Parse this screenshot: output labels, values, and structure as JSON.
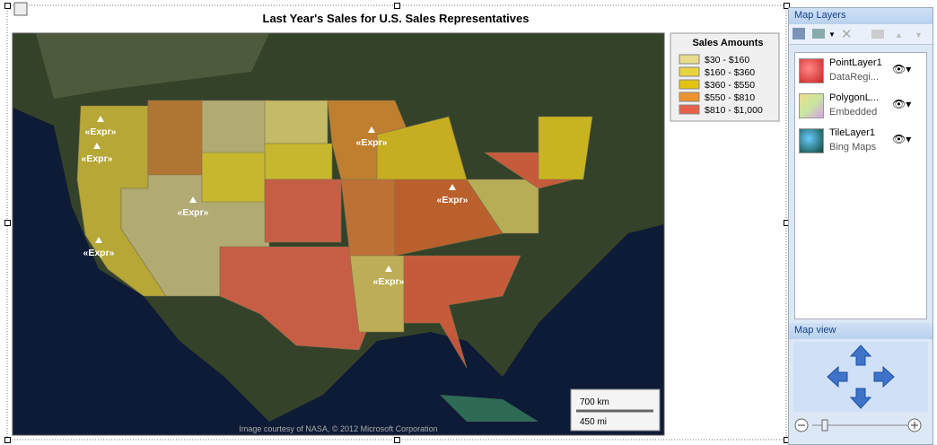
{
  "report": {
    "title": "Last Year's Sales for U.S. Sales Representatives",
    "legend": {
      "title": "Sales Amounts",
      "items": [
        {
          "label": "$30 - $160",
          "color": "#e6dc8c"
        },
        {
          "label": "$160 - $360",
          "color": "#e8d440"
        },
        {
          "label": "$360 - $550",
          "color": "#e2c410"
        },
        {
          "label": "$550 - $810",
          "color": "#ec9230"
        },
        {
          "label": "$810 - $1,000",
          "color": "#e6604a"
        }
      ]
    },
    "points": [
      "«Expr»",
      "«Expr»",
      "«Expr»",
      "«Expr»",
      "«Expr»",
      "«Expr»",
      "«Expr»"
    ],
    "scale": {
      "km": "700 km",
      "mi": "450 mi"
    },
    "credit": "Image courtesy of NASA, © 2012 Microsoft Corporation"
  },
  "panel": {
    "title": "Map Layers",
    "layers": [
      {
        "name": "PointLayer1",
        "source": "DataRegi..."
      },
      {
        "name": "PolygonL...",
        "source": "Embedded"
      },
      {
        "name": "TileLayer1",
        "source": "Bing Maps"
      }
    ],
    "view_title": "Map view"
  }
}
